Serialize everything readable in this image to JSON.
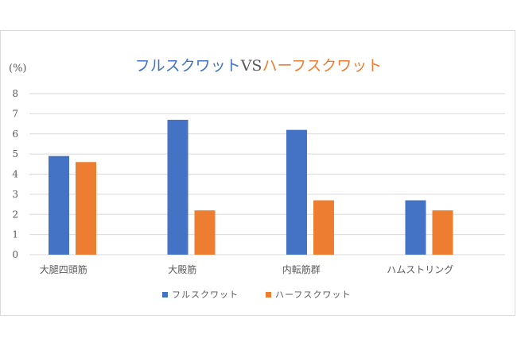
{
  "chart_data": {
    "type": "bar",
    "title_parts": [
      {
        "text": "フルスクワット",
        "color": "#4472c4"
      },
      {
        "text": "VS",
        "color": "#595959"
      },
      {
        "text": "ハーフスクワット",
        "color": "#ed7d31"
      }
    ],
    "ylabel": "(%)",
    "ylim": [
      0,
      8
    ],
    "yticks": [
      0,
      1,
      2,
      3,
      4,
      5,
      6,
      7,
      8
    ],
    "categories": [
      "大腿四頭筋",
      "大殿筋",
      "内転筋群",
      "ハムストリング"
    ],
    "series": [
      {
        "name": "フルスクワット",
        "color": "#4472c4",
        "values": [
          4.9,
          6.7,
          6.2,
          2.7
        ]
      },
      {
        "name": "ハーフスクワット",
        "color": "#ed7d31",
        "values": [
          4.6,
          2.2,
          2.7,
          2.2
        ]
      }
    ],
    "grid": true,
    "legend": "bottom"
  }
}
